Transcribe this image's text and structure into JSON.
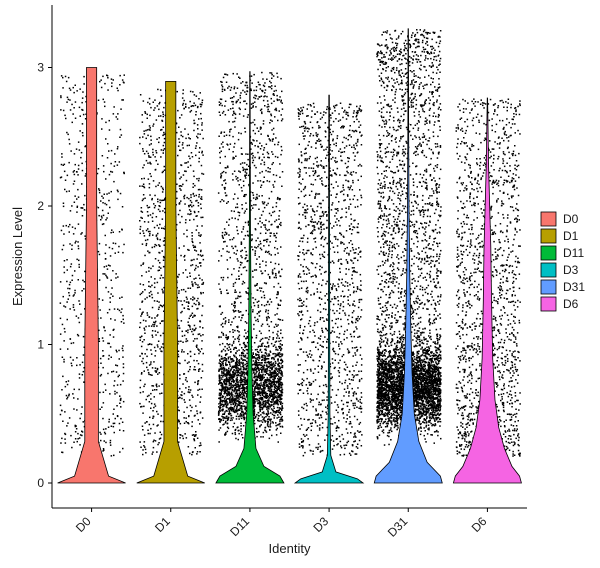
{
  "chart_data": {
    "type": "violin",
    "title": "",
    "xlabel": "Identity",
    "ylabel": "Expression Level",
    "ylim": [
      -0.15,
      3.45
    ],
    "yticks": [
      0,
      1,
      2,
      3
    ],
    "grid": false,
    "legend_position": "right",
    "categories": [
      "D0",
      "D1",
      "D11",
      "D3",
      "D31",
      "D6"
    ],
    "series": [
      {
        "name": "D0",
        "color": "#F8766D",
        "max": 3.0,
        "points": 700,
        "density": [
          [
            0.0,
            0.02
          ],
          [
            0.05,
            0.01
          ],
          [
            0.3,
            0.004
          ],
          [
            1.0,
            0.004
          ],
          [
            2.0,
            0.003
          ],
          [
            3.0,
            0.003
          ]
        ]
      },
      {
        "name": "D1",
        "color": "#B79F00",
        "max": 2.9,
        "points": 1200,
        "density": [
          [
            0.0,
            0.02
          ],
          [
            0.05,
            0.01
          ],
          [
            0.3,
            0.004
          ],
          [
            1.0,
            0.004
          ],
          [
            2.0,
            0.003
          ],
          [
            2.9,
            0.003
          ]
        ]
      },
      {
        "name": "D11",
        "color": "#00BA38",
        "max": 2.97,
        "points": 3000,
        "density": [
          [
            0.0,
            0.85
          ],
          [
            0.05,
            0.75
          ],
          [
            0.12,
            0.35
          ],
          [
            0.25,
            0.15
          ],
          [
            0.5,
            0.08
          ],
          [
            0.8,
            0.05
          ],
          [
            1.2,
            0.03
          ],
          [
            1.8,
            0.015
          ],
          [
            2.5,
            0.008
          ],
          [
            2.97,
            0.005
          ]
        ]
      },
      {
        "name": "D3",
        "color": "#00BFC4",
        "max": 2.8,
        "points": 1300,
        "density": [
          [
            0.0,
            0.6
          ],
          [
            0.03,
            0.5
          ],
          [
            0.08,
            0.12
          ],
          [
            0.2,
            0.03
          ],
          [
            0.5,
            0.015
          ],
          [
            1.0,
            0.012
          ],
          [
            2.0,
            0.008
          ],
          [
            2.8,
            0.005
          ]
        ]
      },
      {
        "name": "D31",
        "color": "#619CFF",
        "max": 3.28,
        "points": 5000,
        "density": [
          [
            0.0,
            0.9
          ],
          [
            0.05,
            0.85
          ],
          [
            0.15,
            0.5
          ],
          [
            0.3,
            0.28
          ],
          [
            0.5,
            0.16
          ],
          [
            0.8,
            0.1
          ],
          [
            1.1,
            0.07
          ],
          [
            1.5,
            0.04
          ],
          [
            2.0,
            0.02
          ],
          [
            2.6,
            0.01
          ],
          [
            3.28,
            0.005
          ]
        ]
      },
      {
        "name": "D6",
        "color": "#F564E3",
        "max": 2.78,
        "points": 1500,
        "density": [
          [
            0.0,
            0.9
          ],
          [
            0.05,
            0.85
          ],
          [
            0.12,
            0.65
          ],
          [
            0.25,
            0.45
          ],
          [
            0.4,
            0.3
          ],
          [
            0.6,
            0.2
          ],
          [
            0.9,
            0.14
          ],
          [
            1.3,
            0.11
          ],
          [
            1.7,
            0.09
          ],
          [
            2.0,
            0.06
          ],
          [
            2.3,
            0.03
          ],
          [
            2.78,
            0.005
          ]
        ]
      }
    ]
  }
}
